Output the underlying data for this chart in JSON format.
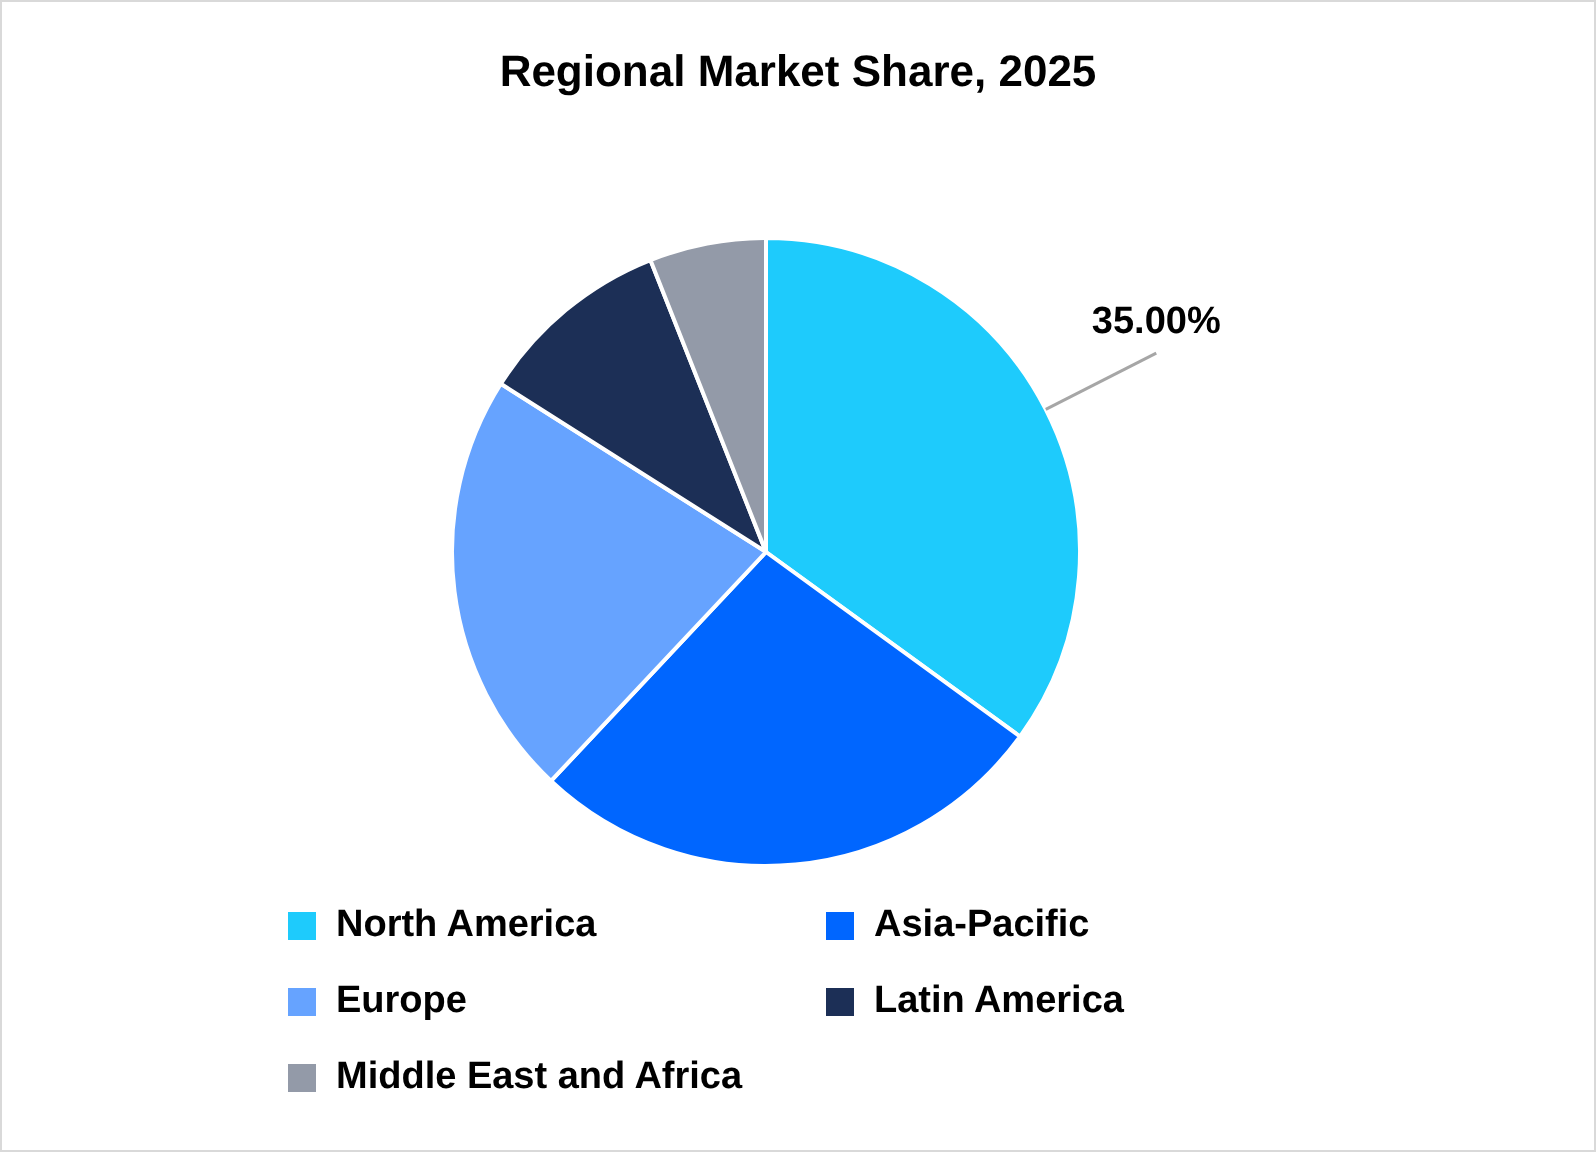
{
  "chart_data": {
    "type": "pie",
    "title": "Regional Market Share, 2025",
    "categories": [
      "North America",
      "Asia-Pacific",
      "Europe",
      "Latin America",
      "Middle East and Africa"
    ],
    "values": [
      35,
      27,
      22,
      10,
      6
    ],
    "colors": [
      "#1ecbfc",
      "#0066ff",
      "#66a3ff",
      "#1c2f56",
      "#939aa8"
    ],
    "value_labels": [
      "35.00%",
      null,
      null,
      null,
      null
    ],
    "legend": "bottom"
  }
}
